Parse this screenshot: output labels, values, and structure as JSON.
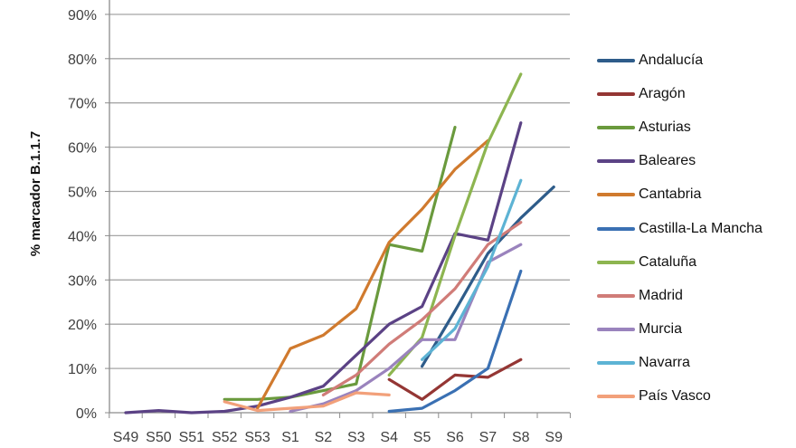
{
  "chart_data": {
    "type": "line",
    "title": "",
    "xlabel": "",
    "ylabel": "% marcador B.1.1.7",
    "ylim": [
      0,
      90
    ],
    "yticks": [
      "0%",
      "10%",
      "20%",
      "30%",
      "40%",
      "50%",
      "60%",
      "70%",
      "80%",
      "90%"
    ],
    "grid": true,
    "legend_position": "right",
    "categories": [
      "S49",
      "S50",
      "S51",
      "S52",
      "S53",
      "S1",
      "S2",
      "S3",
      "S4",
      "S5",
      "S6",
      "S7",
      "S8",
      "S9"
    ],
    "series": [
      {
        "name": "Andalucía",
        "color": "#2e5c8a",
        "values": [
          null,
          null,
          null,
          null,
          null,
          null,
          null,
          null,
          null,
          10.5,
          23,
          36,
          44,
          51
        ]
      },
      {
        "name": "Aragón",
        "color": "#943634",
        "values": [
          null,
          null,
          null,
          null,
          null,
          null,
          null,
          null,
          7.5,
          3,
          8.5,
          8,
          12,
          null
        ]
      },
      {
        "name": "Asturias",
        "color": "#6a9a3d",
        "values": [
          null,
          null,
          null,
          3,
          3,
          3.5,
          5,
          6.5,
          38,
          36.5,
          64.5,
          null,
          null,
          null
        ]
      },
      {
        "name": "Baleares",
        "color": "#5b4285",
        "values": [
          0,
          0.5,
          0,
          0.3,
          1.5,
          3.5,
          6,
          13,
          20,
          24,
          40.5,
          39,
          65.5,
          null
        ]
      },
      {
        "name": "Cantabria",
        "color": "#d07a2e",
        "values": [
          null,
          null,
          null,
          null,
          1,
          14.5,
          17.5,
          23.5,
          38.5,
          46,
          55,
          61.5,
          null,
          null
        ]
      },
      {
        "name": "Castilla-La Mancha",
        "color": "#3a70b3",
        "values": [
          null,
          null,
          null,
          null,
          null,
          null,
          null,
          null,
          0.3,
          1,
          5,
          10,
          32,
          null
        ]
      },
      {
        "name": "Cataluña",
        "color": "#8db550",
        "values": [
          null,
          null,
          null,
          null,
          null,
          null,
          null,
          null,
          8.5,
          17,
          40,
          61,
          76.5,
          null
        ]
      },
      {
        "name": "Madrid",
        "color": "#d07c78",
        "values": [
          null,
          null,
          null,
          null,
          null,
          null,
          4,
          8.5,
          15.5,
          21,
          28,
          38,
          43,
          null
        ]
      },
      {
        "name": "Murcia",
        "color": "#9a83bd",
        "values": [
          null,
          null,
          null,
          null,
          null,
          0.3,
          2,
          5,
          10,
          16.5,
          16.5,
          34,
          38,
          null
        ]
      },
      {
        "name": "Navarra",
        "color": "#5db3d4",
        "values": [
          null,
          null,
          null,
          null,
          null,
          null,
          null,
          null,
          null,
          12,
          19,
          33,
          52.5,
          null
        ]
      },
      {
        "name": "País Vasco",
        "color": "#f2a07a",
        "values": [
          null,
          null,
          null,
          2.5,
          0.5,
          1,
          1.5,
          4.5,
          4,
          null,
          null,
          null,
          null,
          null
        ]
      }
    ]
  }
}
